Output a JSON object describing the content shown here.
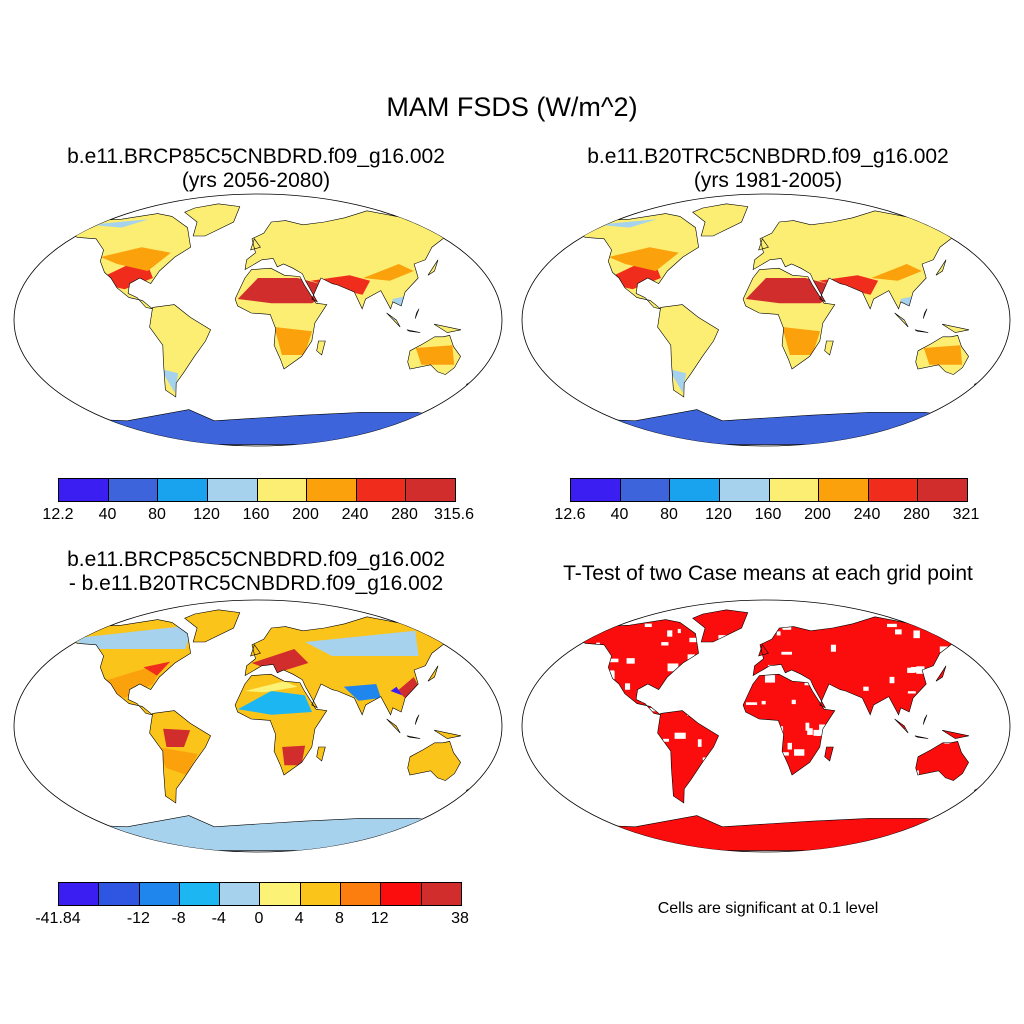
{
  "main_title": "MAM FSDS (W/m^2)",
  "panels": [
    {
      "id": "future",
      "title_line1": "b.e11.BRCP85C5CNBDRD.f09_g16.002",
      "title_line2": "(yrs 2056-2080)",
      "colorbar": {
        "colors": [
          "#3a1ef2",
          "#3d64db",
          "#19a3ee",
          "#a6d2ee",
          "#fbee72",
          "#fba10c",
          "#f02d1c",
          "#d22d2d"
        ],
        "labels": [
          "12.2",
          "40",
          "80",
          "120",
          "160",
          "200",
          "240",
          "280",
          "315.6"
        ]
      }
    },
    {
      "id": "historical",
      "title_line1": "b.e11.B20TRC5CNBDRD.f09_g16.002",
      "title_line2": "(yrs 1981-2005)",
      "colorbar": {
        "colors": [
          "#3a1ef2",
          "#3d64db",
          "#19a3ee",
          "#a6d2ee",
          "#fbee72",
          "#fba10c",
          "#f02d1c",
          "#d22d2d"
        ],
        "labels": [
          "12.6",
          "40",
          "80",
          "120",
          "160",
          "200",
          "240",
          "280",
          "321"
        ]
      }
    },
    {
      "id": "difference",
      "title_line1": "b.e11.BRCP85C5CNBDRD.f09_g16.002",
      "title_line2": "- b.e11.B20TRC5CNBDRD.f09_g16.002",
      "colorbar": {
        "colors": [
          "#3a1ef2",
          "#2f55e3",
          "#1f86ee",
          "#1cb6f2",
          "#a6d2ee",
          "#fbf276",
          "#fbc41a",
          "#fb7e0e",
          "#fb0d0d",
          "#d22d2d"
        ],
        "labels": [
          "-41.84",
          "",
          "-12",
          "-8",
          "-4",
          "0",
          "4",
          "8",
          "12",
          "",
          "38"
        ]
      }
    },
    {
      "id": "ttest",
      "title_line1": "T-Test of two Case means at each grid point",
      "note": "Cells are significant at 0.1 level",
      "color": "#fb0d0d"
    }
  ]
}
